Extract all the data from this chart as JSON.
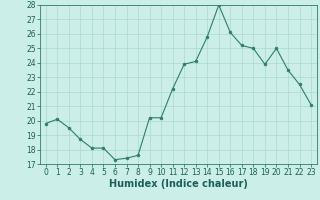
{
  "x": [
    0,
    1,
    2,
    3,
    4,
    5,
    6,
    7,
    8,
    9,
    10,
    11,
    12,
    13,
    14,
    15,
    16,
    17,
    18,
    19,
    20,
    21,
    22,
    23
  ],
  "y": [
    19.8,
    20.1,
    19.5,
    18.7,
    18.1,
    18.1,
    17.3,
    17.4,
    17.6,
    20.2,
    20.2,
    22.2,
    23.9,
    24.1,
    25.8,
    28.0,
    26.1,
    25.2,
    25.0,
    23.9,
    25.0,
    23.5,
    22.5,
    21.1
  ],
  "line_color": "#2e7d6e",
  "marker_color": "#2e7d6e",
  "bg_color": "#cceee8",
  "grid_color": "#aad8d0",
  "xlabel": "Humidex (Indice chaleur)",
  "ylim": [
    17,
    28
  ],
  "xlim_min": -0.5,
  "xlim_max": 23.5,
  "yticks": [
    17,
    18,
    19,
    20,
    21,
    22,
    23,
    24,
    25,
    26,
    27,
    28
  ],
  "xticks": [
    0,
    1,
    2,
    3,
    4,
    5,
    6,
    7,
    8,
    9,
    10,
    11,
    12,
    13,
    14,
    15,
    16,
    17,
    18,
    19,
    20,
    21,
    22,
    23
  ],
  "tick_fontsize": 5.5,
  "xlabel_fontsize": 7.0
}
